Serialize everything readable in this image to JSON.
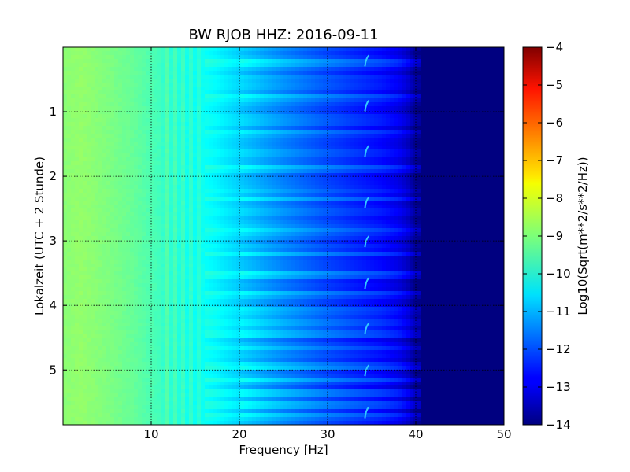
{
  "chart_data": {
    "type": "heatmap",
    "title": "BW RJOB HHZ: 2016-09-11",
    "xlabel": "Frequency [Hz]",
    "ylabel": "Lokalzeit (UTC + 2 Stunde)",
    "xlim": [
      0,
      50
    ],
    "ylim": [
      0,
      5.85
    ],
    "y_inverted": true,
    "grid": true,
    "x_ticks": [
      10,
      20,
      30,
      40,
      50
    ],
    "x_tick_labels": [
      "10",
      "20",
      "30",
      "40",
      "50"
    ],
    "y_ticks": [
      1,
      2,
      3,
      4,
      5
    ],
    "y_tick_labels": [
      "1",
      "2",
      "3",
      "4",
      "5"
    ],
    "colorbar": {
      "label": "Log10(Sqrt(m**2/s**2/Hz))",
      "range": [
        -14,
        -4
      ],
      "ticks": [
        -4,
        -5,
        -6,
        -7,
        -8,
        -9,
        -10,
        -11,
        -12,
        -13,
        -14
      ],
      "tick_labels": [
        "−4",
        "−5",
        "−6",
        "−7",
        "−8",
        "−9",
        "−10",
        "−11",
        "−12",
        "−13",
        "−14"
      ],
      "colormap": "jet"
    },
    "frequency_profile_hz": [
      0,
      2,
      5,
      8,
      10,
      12,
      14,
      16,
      18,
      20,
      22,
      24,
      26,
      28,
      30,
      32,
      34,
      36,
      38,
      39,
      40,
      42,
      45,
      50
    ],
    "frequency_profile_value": [
      -8.9,
      -8.8,
      -9.0,
      -9.25,
      -9.5,
      -9.7,
      -9.95,
      -10.15,
      -10.4,
      -10.7,
      -11.0,
      -11.3,
      -11.55,
      -11.8,
      -12.05,
      -12.25,
      -12.45,
      -12.65,
      -12.95,
      -13.3,
      -13.8,
      -14.0,
      -14.0,
      -14.0
    ],
    "bright_bands_hours": [
      0.25,
      0.8,
      1.3,
      1.9,
      2.35,
      2.85,
      3.2,
      3.55,
      3.85,
      4.1,
      4.25,
      4.45,
      4.65,
      4.95,
      5.15,
      5.35,
      5.55,
      5.7
    ],
    "tremor_line_hz": 34.5,
    "tremor_hook_hours": [
      0.15,
      0.85,
      1.55,
      2.35,
      2.95,
      3.6,
      4.3,
      4.95,
      5.6
    ]
  }
}
